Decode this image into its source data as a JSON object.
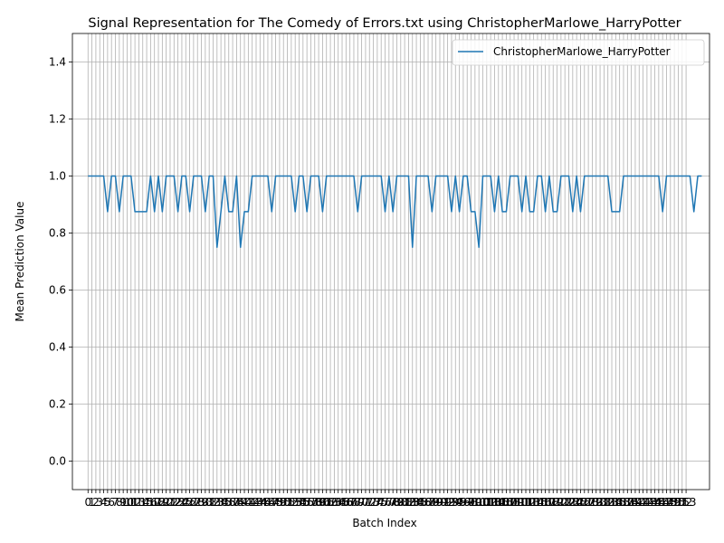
{
  "chart_data": {
    "type": "line",
    "title": "Signal Representation for The Comedy of Errors.txt using ChristopherMarlowe_HarryPotter",
    "xlabel": "Batch Index",
    "ylabel": "Mean Prediction Value",
    "xlim": [
      -4,
      159
    ],
    "ylim": [
      -0.1,
      1.5
    ],
    "yticks": [
      0.0,
      0.2,
      0.4,
      0.6,
      0.8,
      1.0,
      1.2,
      1.4
    ],
    "xticks_count": 154,
    "grid": true,
    "legend_position": "top-right",
    "series": [
      {
        "name": "ChristopherMarlowe_HarryPotter",
        "color": "#1f77b4",
        "values": [
          1.0,
          1.0,
          1.0,
          1.0,
          1.0,
          0.875,
          1.0,
          1.0,
          0.875,
          1.0,
          1.0,
          1.0,
          0.875,
          0.875,
          0.875,
          0.875,
          1.0,
          0.875,
          1.0,
          0.875,
          1.0,
          1.0,
          1.0,
          0.875,
          1.0,
          1.0,
          0.875,
          1.0,
          1.0,
          1.0,
          0.875,
          1.0,
          1.0,
          0.75,
          0.875,
          1.0,
          0.875,
          0.875,
          1.0,
          0.75,
          0.875,
          0.875,
          1.0,
          1.0,
          1.0,
          1.0,
          1.0,
          0.875,
          1.0,
          1.0,
          1.0,
          1.0,
          1.0,
          0.875,
          1.0,
          1.0,
          0.875,
          1.0,
          1.0,
          1.0,
          0.875,
          1.0,
          1.0,
          1.0,
          1.0,
          1.0,
          1.0,
          1.0,
          1.0,
          0.875,
          1.0,
          1.0,
          1.0,
          1.0,
          1.0,
          1.0,
          0.875,
          1.0,
          0.875,
          1.0,
          1.0,
          1.0,
          1.0,
          0.75,
          1.0,
          1.0,
          1.0,
          1.0,
          0.875,
          1.0,
          1.0,
          1.0,
          1.0,
          0.875,
          1.0,
          0.875,
          1.0,
          1.0,
          0.875,
          0.875,
          0.75,
          1.0,
          1.0,
          1.0,
          0.875,
          1.0,
          0.875,
          0.875,
          1.0,
          1.0,
          1.0,
          0.875,
          1.0,
          0.875,
          0.875,
          1.0,
          1.0,
          0.875,
          1.0,
          0.875,
          0.875,
          1.0,
          1.0,
          1.0,
          0.875,
          1.0,
          0.875,
          1.0,
          1.0,
          1.0,
          1.0,
          1.0,
          1.0,
          1.0,
          0.875,
          0.875,
          0.875,
          1.0,
          1.0,
          1.0,
          1.0,
          1.0,
          1.0,
          1.0,
          1.0,
          1.0,
          1.0,
          0.875,
          1.0,
          1.0,
          1.0,
          1.0,
          1.0,
          1.0,
          1.0,
          0.875,
          1.0,
          1.0
        ]
      }
    ]
  }
}
